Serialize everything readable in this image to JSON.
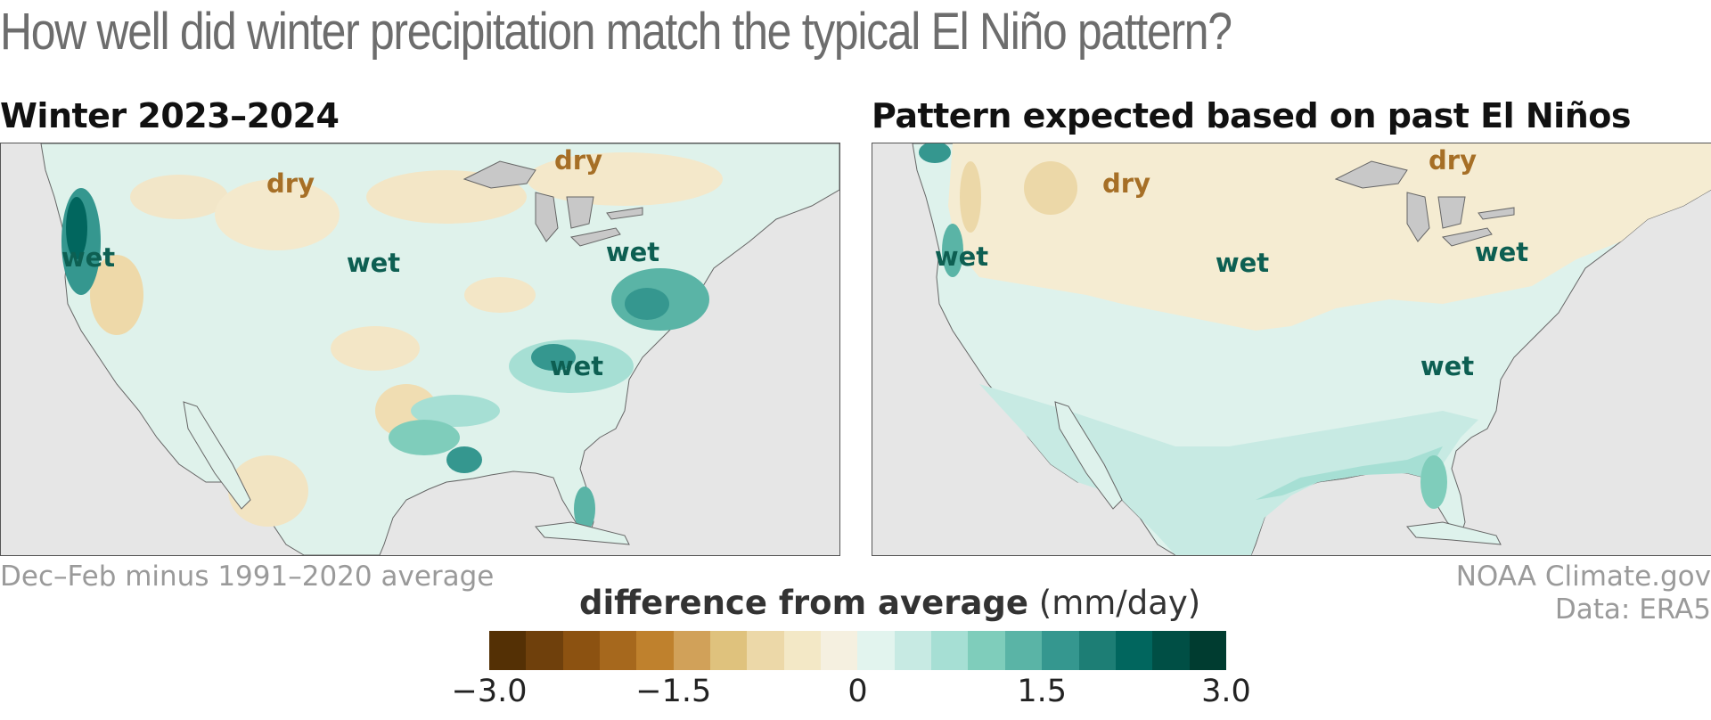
{
  "headline": "How well did winter precipitation match the typical El Niño pattern?",
  "panels": [
    {
      "title": "Winter 2023–2024",
      "labels": [
        {
          "text": "dry",
          "type": "dry"
        },
        {
          "text": "dry",
          "type": "dry"
        },
        {
          "text": "wet",
          "type": "wet"
        },
        {
          "text": "wet",
          "type": "wet"
        },
        {
          "text": "wet",
          "type": "wet"
        },
        {
          "text": "wet",
          "type": "wet"
        }
      ]
    },
    {
      "title": "Pattern expected based on past El Niños",
      "labels": [
        {
          "text": "dry",
          "type": "dry"
        },
        {
          "text": "dry",
          "type": "dry"
        },
        {
          "text": "wet",
          "type": "wet"
        },
        {
          "text": "wet",
          "type": "wet"
        },
        {
          "text": "wet",
          "type": "wet"
        },
        {
          "text": "wet",
          "type": "wet"
        }
      ]
    }
  ],
  "caption_left": "Dec–Feb minus 1991–2020 average",
  "credit_line1": "NOAA Climate.gov",
  "credit_line2": "Data: ERA5",
  "legend": {
    "title_bold": "difference from average",
    "title_units": "(mm/day)",
    "tick_labels": [
      "−3.0",
      "−1.5",
      "0",
      "1.5",
      "3.0"
    ],
    "tick_values": [
      -3.0,
      -1.5,
      0,
      1.5,
      3.0
    ],
    "range": [
      -3.0,
      3.0
    ],
    "colors": [
      "#543005",
      "#6f400c",
      "#8c5211",
      "#a6681d",
      "#bf812d",
      "#d1a159",
      "#dfc27d",
      "#ecd8a8",
      "#f3e8c6",
      "#f5f0e0",
      "#e2f4ee",
      "#c7eae3",
      "#a6dfd4",
      "#7fcdbb",
      "#5ab4a6",
      "#35978f",
      "#1d7e75",
      "#01665e",
      "#004f45",
      "#003c30"
    ]
  },
  "colors": {
    "land_dry_light": "#f5ead0",
    "land_wet_light": "#def2ec",
    "ocean": "#e6e6e6",
    "wet_label": "#0d5f52",
    "dry_label": "#a66f26"
  }
}
